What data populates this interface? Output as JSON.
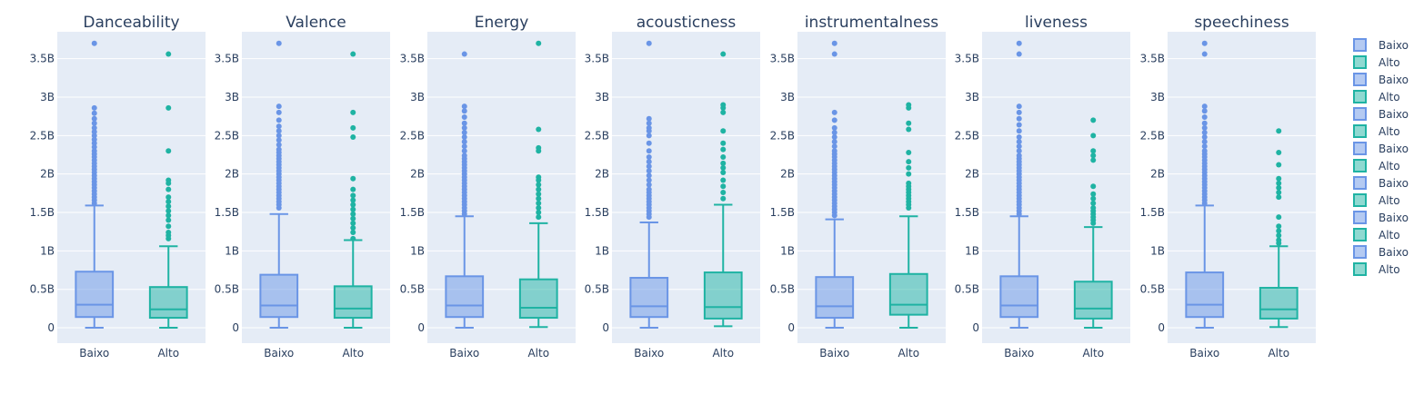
{
  "chart_data": {
    "type": "box",
    "y_tick_labels": [
      "0",
      "0.5B",
      "1B",
      "1.5B",
      "2B",
      "2.5B",
      "3B",
      "3.5B"
    ],
    "y_ticks": [
      0,
      0.5,
      1,
      1.5,
      2,
      2.5,
      3,
      3.5
    ],
    "y_unit": "B",
    "ylim": [
      -0.2,
      3.85
    ],
    "grid": true,
    "legend_placement": "right",
    "colors": {
      "Baixo": "#6a95e6",
      "Alto": "#1fb3a3",
      "background": "#e5ecf6"
    },
    "legend": [
      "Baixo",
      "Alto",
      "Baixo",
      "Alto",
      "Baixo",
      "Alto",
      "Baixo",
      "Alto",
      "Baixo",
      "Alto",
      "Baixo",
      "Alto",
      "Baixo",
      "Alto"
    ],
    "panels": [
      {
        "title": "Danceability",
        "categories": [
          "Baixo",
          "Alto"
        ],
        "boxes": [
          {
            "name": "Baixo",
            "min": 0,
            "q1": 0.14,
            "median": 0.3,
            "q3": 0.73,
            "max": 1.59,
            "outliers": [
              1.62,
              1.66,
              1.7,
              1.74,
              1.78,
              1.82,
              1.86,
              1.9,
              1.94,
              1.98,
              2.02,
              2.06,
              2.1,
              2.14,
              2.18,
              2.22,
              2.26,
              2.3,
              2.35,
              2.4,
              2.45,
              2.5,
              2.55,
              2.6,
              2.66,
              2.72,
              2.79,
              2.86,
              3.7
            ]
          },
          {
            "name": "Alto",
            "min": 0,
            "q1": 0.13,
            "median": 0.24,
            "q3": 0.53,
            "max": 1.06,
            "outliers": [
              1.16,
              1.2,
              1.24,
              1.32,
              1.4,
              1.46,
              1.52,
              1.58,
              1.64,
              1.7,
              1.8,
              1.88,
              1.92,
              2.3,
              2.86,
              3.56
            ]
          }
        ]
      },
      {
        "title": "Valence",
        "categories": [
          "Baixo",
          "Alto"
        ],
        "boxes": [
          {
            "name": "Baixo",
            "min": 0,
            "q1": 0.14,
            "median": 0.29,
            "q3": 0.69,
            "max": 1.48,
            "outliers": [
              1.56,
              1.6,
              1.64,
              1.68,
              1.72,
              1.76,
              1.8,
              1.84,
              1.88,
              1.92,
              1.96,
              2.0,
              2.04,
              2.08,
              2.12,
              2.16,
              2.2,
              2.24,
              2.28,
              2.32,
              2.38,
              2.44,
              2.5,
              2.56,
              2.62,
              2.7,
              2.8,
              2.88,
              3.7
            ]
          },
          {
            "name": "Alto",
            "min": 0,
            "q1": 0.13,
            "median": 0.25,
            "q3": 0.54,
            "max": 1.14,
            "outliers": [
              1.16,
              1.24,
              1.3,
              1.36,
              1.42,
              1.48,
              1.54,
              1.6,
              1.66,
              1.72,
              1.8,
              1.94,
              2.48,
              2.6,
              2.8,
              3.56
            ]
          }
        ]
      },
      {
        "title": "Energy",
        "categories": [
          "Baixo",
          "Alto"
        ],
        "boxes": [
          {
            "name": "Baixo",
            "min": 0,
            "q1": 0.14,
            "median": 0.29,
            "q3": 0.67,
            "max": 1.45,
            "outliers": [
              1.48,
              1.52,
              1.56,
              1.6,
              1.64,
              1.68,
              1.72,
              1.76,
              1.8,
              1.84,
              1.88,
              1.92,
              1.96,
              2.0,
              2.04,
              2.08,
              2.12,
              2.16,
              2.2,
              2.24,
              2.3,
              2.36,
              2.42,
              2.48,
              2.54,
              2.6,
              2.66,
              2.74,
              2.82,
              2.88,
              3.56
            ]
          },
          {
            "name": "Alto",
            "min": 0.01,
            "q1": 0.13,
            "median": 0.26,
            "q3": 0.63,
            "max": 1.36,
            "outliers": [
              1.44,
              1.5,
              1.56,
              1.62,
              1.68,
              1.74,
              1.8,
              1.86,
              1.92,
              1.96,
              2.3,
              2.34,
              2.58,
              3.7
            ]
          }
        ]
      },
      {
        "title": "acousticness",
        "categories": [
          "Baixo",
          "Alto"
        ],
        "boxes": [
          {
            "name": "Baixo",
            "min": 0,
            "q1": 0.14,
            "median": 0.28,
            "q3": 0.65,
            "max": 1.37,
            "outliers": [
              1.44,
              1.48,
              1.52,
              1.56,
              1.6,
              1.64,
              1.68,
              1.72,
              1.76,
              1.8,
              1.86,
              1.92,
              1.98,
              2.04,
              2.1,
              2.16,
              2.22,
              2.3,
              2.4,
              2.5,
              2.56,
              2.6,
              2.66,
              2.72,
              3.7
            ]
          },
          {
            "name": "Alto",
            "min": 0.02,
            "q1": 0.12,
            "median": 0.27,
            "q3": 0.72,
            "max": 1.6,
            "outliers": [
              1.68,
              1.76,
              1.84,
              1.92,
              2.02,
              2.08,
              2.14,
              2.22,
              2.32,
              2.4,
              2.56,
              2.8,
              2.86,
              2.9,
              3.56
            ]
          }
        ]
      },
      {
        "title": "instrumentalness",
        "categories": [
          "Baixo",
          "Alto"
        ],
        "boxes": [
          {
            "name": "Baixo",
            "min": 0,
            "q1": 0.13,
            "median": 0.28,
            "q3": 0.66,
            "max": 1.41,
            "outliers": [
              1.46,
              1.5,
              1.54,
              1.58,
              1.62,
              1.66,
              1.7,
              1.74,
              1.78,
              1.82,
              1.86,
              1.9,
              1.94,
              1.98,
              2.02,
              2.06,
              2.1,
              2.14,
              2.18,
              2.22,
              2.26,
              2.3,
              2.36,
              2.42,
              2.48,
              2.54,
              2.6,
              2.7,
              2.8,
              3.56,
              3.7
            ]
          },
          {
            "name": "Alto",
            "min": 0,
            "q1": 0.17,
            "median": 0.3,
            "q3": 0.7,
            "max": 1.45,
            "outliers": [
              1.56,
              1.6,
              1.64,
              1.68,
              1.72,
              1.76,
              1.8,
              1.84,
              1.88,
              2.0,
              2.08,
              2.16,
              2.28,
              2.58,
              2.66,
              2.86,
              2.9
            ]
          }
        ]
      },
      {
        "title": "liveness",
        "categories": [
          "Baixo",
          "Alto"
        ],
        "boxes": [
          {
            "name": "Baixo",
            "min": 0,
            "q1": 0.14,
            "median": 0.29,
            "q3": 0.67,
            "max": 1.45,
            "outliers": [
              1.48,
              1.52,
              1.56,
              1.6,
              1.64,
              1.68,
              1.72,
              1.76,
              1.8,
              1.84,
              1.88,
              1.92,
              1.96,
              2.0,
              2.04,
              2.08,
              2.12,
              2.16,
              2.2,
              2.24,
              2.3,
              2.36,
              2.42,
              2.48,
              2.56,
              2.64,
              2.72,
              2.8,
              2.88,
              3.56,
              3.7
            ]
          },
          {
            "name": "Alto",
            "min": 0,
            "q1": 0.12,
            "median": 0.25,
            "q3": 0.6,
            "max": 1.31,
            "outliers": [
              1.36,
              1.4,
              1.44,
              1.48,
              1.52,
              1.56,
              1.62,
              1.68,
              1.74,
              1.84,
              2.18,
              2.24,
              2.3,
              2.5,
              2.7
            ]
          }
        ]
      },
      {
        "title": "speechiness",
        "categories": [
          "Baixo",
          "Alto"
        ],
        "boxes": [
          {
            "name": "Baixo",
            "min": 0,
            "q1": 0.14,
            "median": 0.3,
            "q3": 0.72,
            "max": 1.59,
            "outliers": [
              1.62,
              1.66,
              1.7,
              1.74,
              1.78,
              1.82,
              1.86,
              1.9,
              1.94,
              1.98,
              2.02,
              2.06,
              2.1,
              2.14,
              2.18,
              2.22,
              2.26,
              2.3,
              2.36,
              2.42,
              2.48,
              2.54,
              2.6,
              2.66,
              2.74,
              2.82,
              2.88,
              3.56,
              3.7
            ]
          },
          {
            "name": "Alto",
            "min": 0.01,
            "q1": 0.12,
            "median": 0.24,
            "q3": 0.52,
            "max": 1.06,
            "outliers": [
              1.1,
              1.14,
              1.2,
              1.26,
              1.32,
              1.44,
              1.7,
              1.76,
              1.82,
              1.88,
              1.94,
              2.12,
              2.28,
              2.56
            ]
          }
        ]
      }
    ]
  }
}
